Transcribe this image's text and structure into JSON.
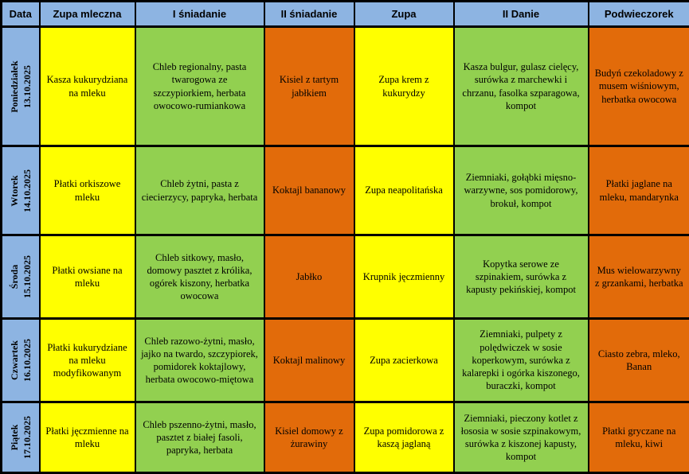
{
  "header": {
    "columns": [
      "Data",
      "Zupa mleczna",
      "I śniadanie",
      "II śniadanie",
      "Zupa",
      "II Danie",
      "Podwieczorek"
    ]
  },
  "rows": [
    {
      "day": "Poniedziałek",
      "date": "13.10.2025",
      "milk_soup": "Kasza kukurydziana na mleku",
      "breakfast1": "Chleb regionalny, pasta twarogowa ze szczypiorkiem, herbata owocowo-rumiankowa",
      "breakfast2": "Kisiel z tartym jabłkiem",
      "soup": "Zupa krem z kukurydzy",
      "main_course": "Kasza bulgur, gulasz cielęcy, surówka z marchewki i chrzanu, fasolka szparagowa, kompot",
      "afternoon_snack": "Budyń czekoladowy z musem wiśniowym, herbatka owocowa"
    },
    {
      "day": "Wtorek",
      "date": "14.10.2025",
      "milk_soup": "Płatki orkiszowe mleku",
      "breakfast1": "Chleb żytni, pasta z ciecierzycy, papryka, herbata",
      "breakfast2": "Koktajl bananowy",
      "soup": "Zupa neapolitańska",
      "main_course": "Ziemniaki, gołąbki mięsno-warzywne, sos pomidorowy, brokuł, kompot",
      "afternoon_snack": "Płatki jaglane na mleku, mandarynka"
    },
    {
      "day": "Środa",
      "date": "15.10.2025",
      "milk_soup": "Płatki owsiane na mleku",
      "breakfast1": "Chleb sitkowy, masło, domowy pasztet z królika, ogórek kiszony, herbatka owocowa",
      "breakfast2": "Jabłko",
      "soup": "Krupnik jęczmienny",
      "main_course": "Kopytka serowe ze szpinakiem, surówka z kapusty pekińskiej, kompot",
      "afternoon_snack": "Mus wielowarzywny z grzankami, herbatka"
    },
    {
      "day": "Czwartek",
      "date": "16.10.2025",
      "milk_soup": "Płatki kukurydziane na mleku modyfikowanym",
      "breakfast1": "Chleb razowo-żytni, masło, jajko na twardo, szczypiorek, pomidorek koktajlowy, herbata owocowo-miętowa",
      "breakfast2": "Koktajl malinowy",
      "soup": "Zupa zacierkowa",
      "main_course": "Ziemniaki, pulpety z polędwiczek w sosie koperkowym, surówka z kalarepki i ogórka kiszonego, buraczki, kompot",
      "afternoon_snack": "Ciasto zebra, mleko, Banan"
    },
    {
      "day": "Piątek",
      "date": "17.10.2025",
      "milk_soup": "Płatki jęczmienne na mleku",
      "breakfast1": "Chleb pszenno-żytni, masło, pasztet z białej fasoli, papryka, herbata",
      "breakfast2": "Kisiel domowy z żurawiny",
      "soup": "Zupa pomidorowa z kaszą jaglaną",
      "main_course": "Ziemniaki, pieczony kotlet z łososia w sosie szpinakowym, surówka z kiszonej kapusty, kompot",
      "afternoon_snack": "Płatki gryczane na mleku, kiwi"
    }
  ],
  "colors": {
    "header_bg": "#8DB4E2",
    "day_column_bg": "#8DB4E2",
    "milk_soup_bg": "#FFFF00",
    "breakfast1_bg": "#92D050",
    "breakfast2_bg": "#E26B0A",
    "soup_bg": "#FFFF00",
    "main_course_bg": "#92D050",
    "afternoon_snack_bg": "#E26B0A",
    "border": "#000000"
  }
}
